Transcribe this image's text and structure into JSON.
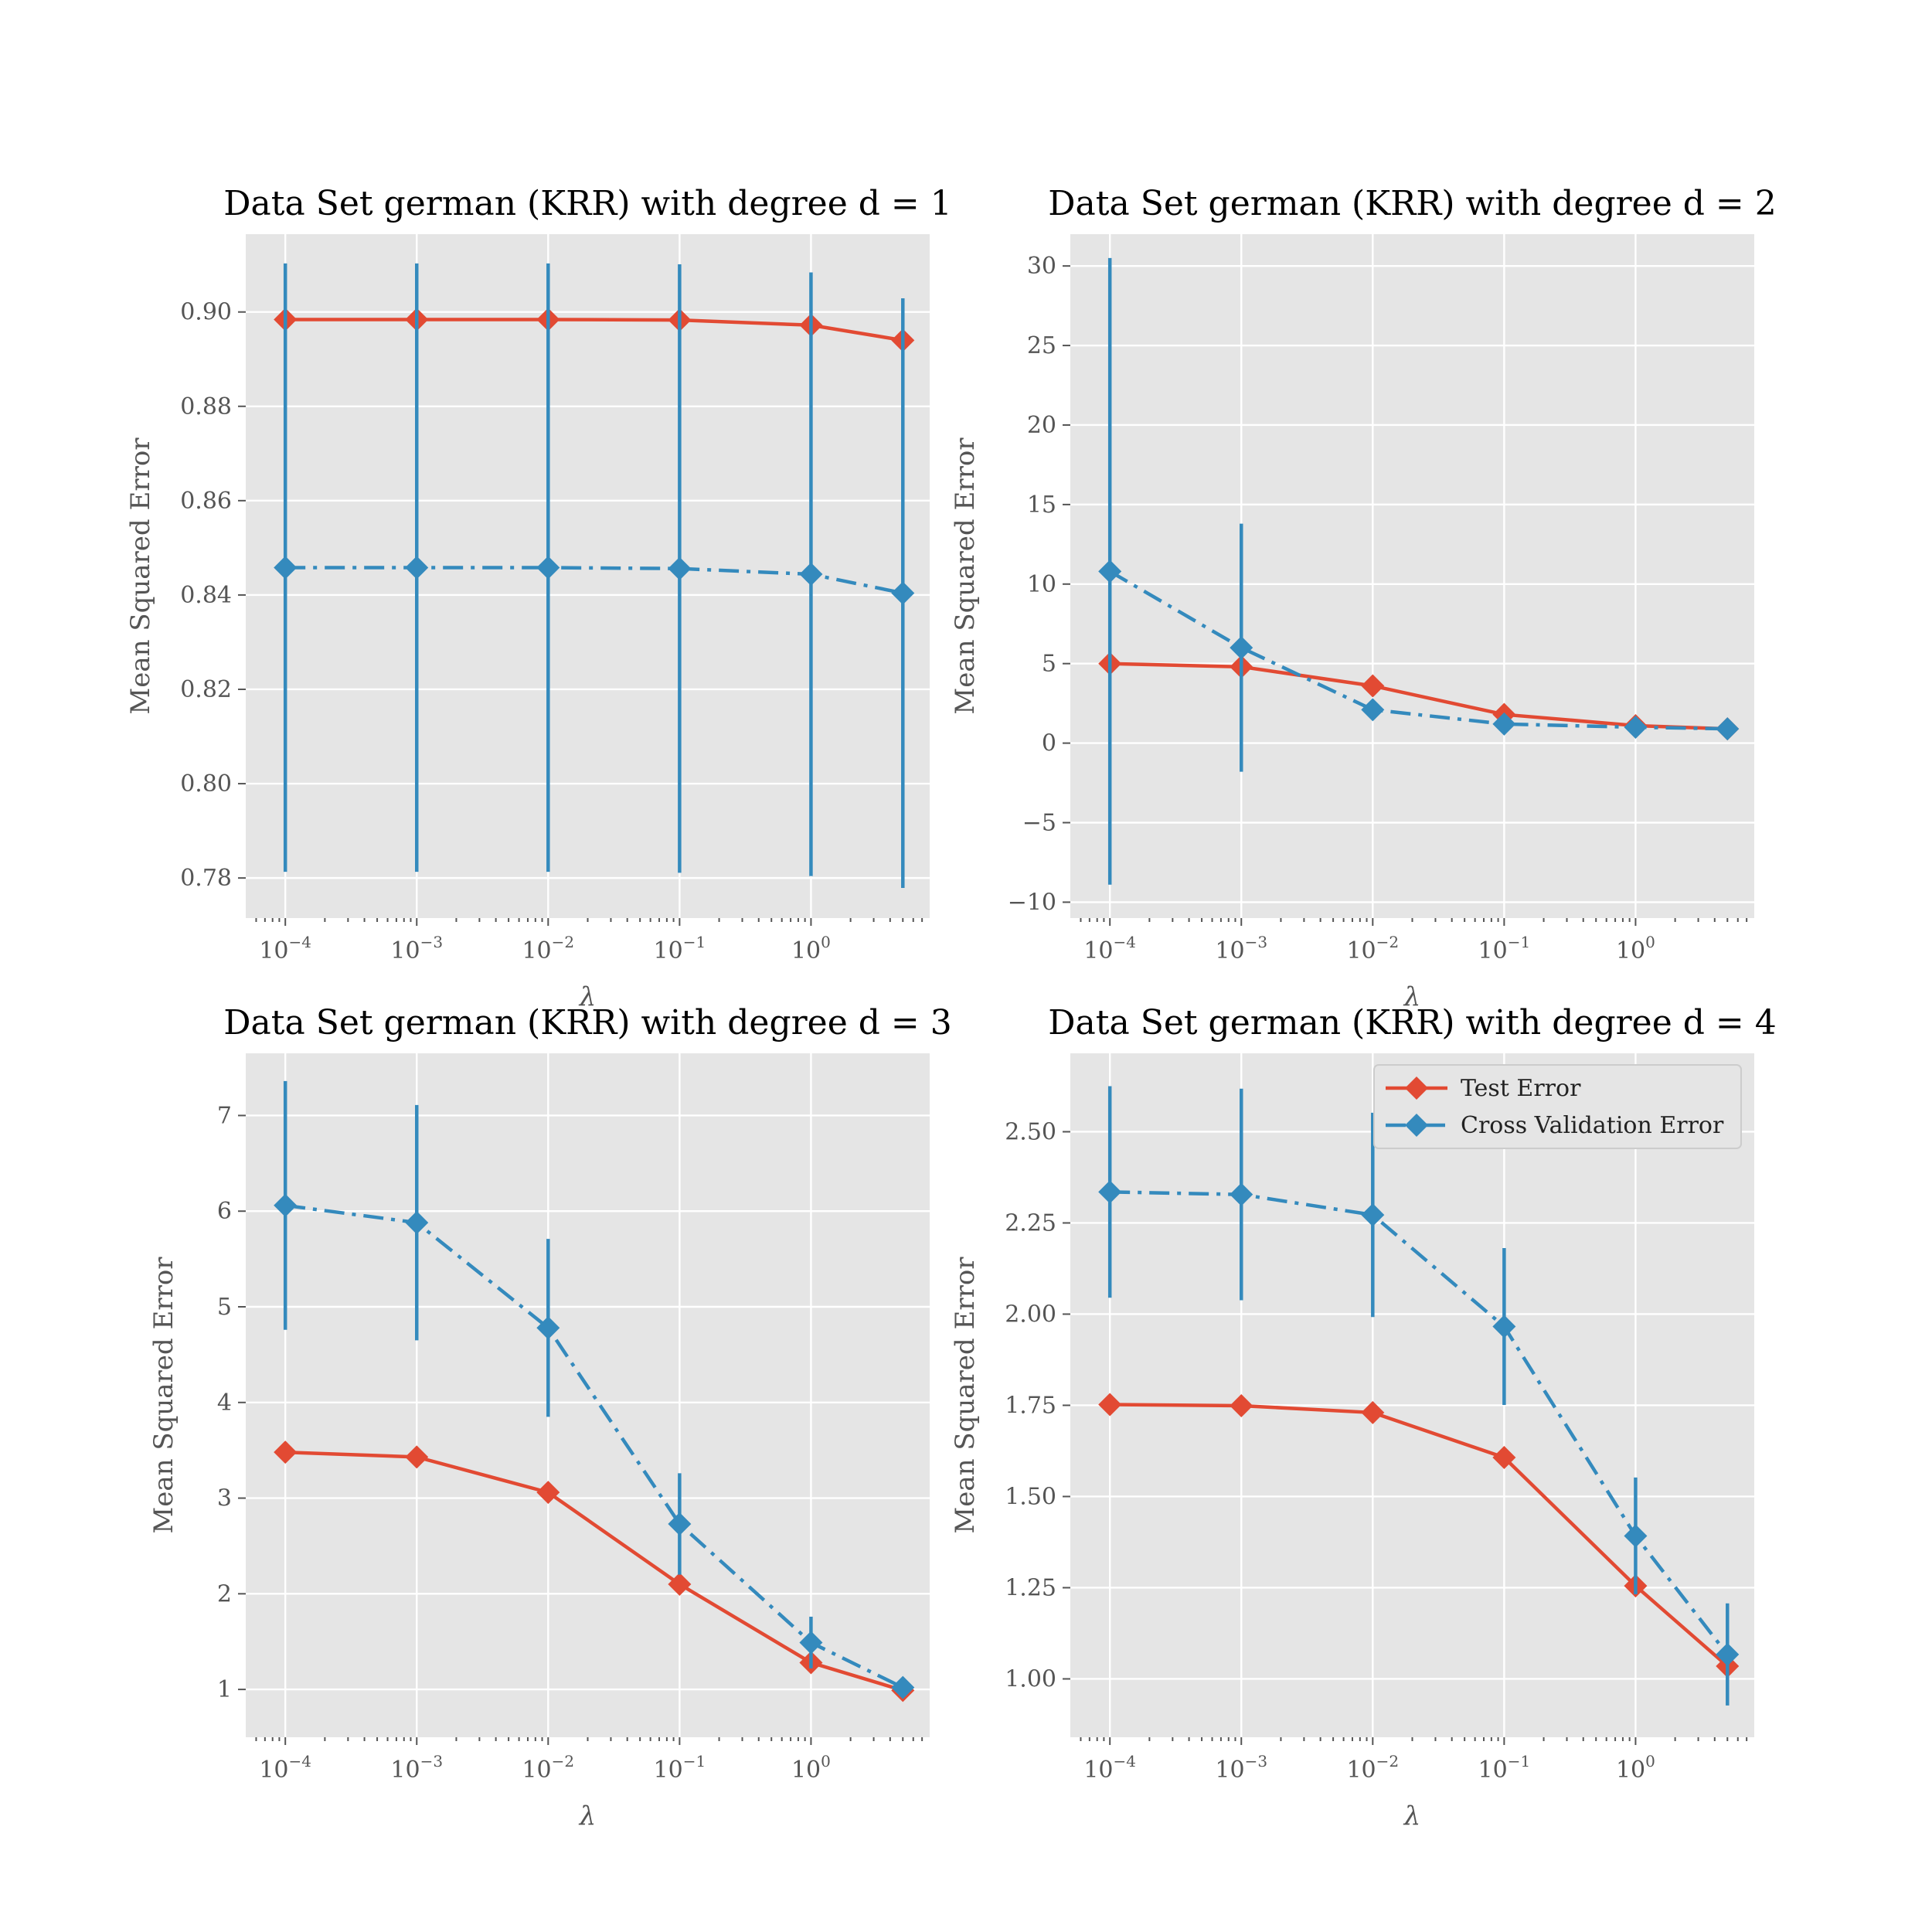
{
  "figure": {
    "xlabel": "λ",
    "ylabel": "Mean Squared Error"
  },
  "legend": {
    "test_label": "Test Error",
    "cv_label": "Cross Validation Error"
  },
  "colors": {
    "test": "#e24a33",
    "cv": "#348abd",
    "panel_bg": "#e5e5e5"
  },
  "chart_data": [
    {
      "type": "line",
      "title": "Data Set german (KRR) with degree d = 1",
      "xscale": "log",
      "xlim": [
        5e-05,
        8
      ],
      "ylim": [
        0.7715,
        0.9165
      ],
      "x": [
        0.0001,
        0.001,
        0.01,
        0.1,
        1,
        5
      ],
      "xticks": [
        0.0001,
        0.001,
        0.01,
        0.1,
        1
      ],
      "xtick_labels": [
        "10−4",
        "10−3",
        "10−2",
        "10−1",
        "100"
      ],
      "yticks": [
        0.78,
        0.8,
        0.82,
        0.84,
        0.86,
        0.88,
        0.9
      ],
      "ytick_labels": [
        "0.78",
        "0.80",
        "0.82",
        "0.84",
        "0.86",
        "0.88",
        "0.90"
      ],
      "series": [
        {
          "name": "Test Error",
          "style": "solid",
          "values": [
            0.8984,
            0.8984,
            0.8984,
            0.8983,
            0.8972,
            0.894
          ]
        },
        {
          "name": "Cross Validation Error",
          "style": "dashdot",
          "values": [
            0.8458,
            0.8458,
            0.8458,
            0.8456,
            0.8444,
            0.8404
          ],
          "err": [
            0.0645,
            0.0645,
            0.0645,
            0.0645,
            0.064,
            0.0625
          ]
        }
      ],
      "legend": false
    },
    {
      "type": "line",
      "title": "Data Set german (KRR) with degree d = 2",
      "xscale": "log",
      "xlim": [
        5e-05,
        8
      ],
      "ylim": [
        -11,
        32
      ],
      "x": [
        0.0001,
        0.001,
        0.01,
        0.1,
        1,
        5
      ],
      "xticks": [
        0.0001,
        0.001,
        0.01,
        0.1,
        1
      ],
      "xtick_labels": [
        "10−4",
        "10−3",
        "10−2",
        "10−1",
        "100"
      ],
      "yticks": [
        -10,
        -5,
        0,
        5,
        10,
        15,
        20,
        25,
        30
      ],
      "ytick_labels": [
        "−10",
        "−5",
        "0",
        "5",
        "10",
        "15",
        "20",
        "25",
        "30"
      ],
      "series": [
        {
          "name": "Test Error",
          "style": "solid",
          "values": [
            5.0,
            4.8,
            3.6,
            1.8,
            1.1,
            0.9
          ]
        },
        {
          "name": "Cross Validation Error",
          "style": "dashdot",
          "values": [
            10.8,
            6.0,
            2.1,
            1.2,
            1.0,
            0.9
          ],
          "err": [
            19.7,
            7.8,
            0.2,
            0.15,
            0.1,
            0.05
          ]
        }
      ],
      "legend": false
    },
    {
      "type": "line",
      "title": "Data Set german (KRR) with degree d = 3",
      "xscale": "log",
      "xlim": [
        5e-05,
        8
      ],
      "ylim": [
        0.5,
        7.65
      ],
      "x": [
        0.0001,
        0.001,
        0.01,
        0.1,
        1,
        5
      ],
      "xticks": [
        0.0001,
        0.001,
        0.01,
        0.1,
        1
      ],
      "xtick_labels": [
        "10−4",
        "10−3",
        "10−2",
        "10−1",
        "100"
      ],
      "yticks": [
        1,
        2,
        3,
        4,
        5,
        6,
        7
      ],
      "ytick_labels": [
        "1",
        "2",
        "3",
        "4",
        "5",
        "6",
        "7"
      ],
      "series": [
        {
          "name": "Test Error",
          "style": "solid",
          "values": [
            3.48,
            3.43,
            3.06,
            2.1,
            1.28,
            0.99
          ]
        },
        {
          "name": "Cross Validation Error",
          "style": "dashdot",
          "values": [
            6.06,
            5.88,
            4.78,
            2.73,
            1.49,
            1.02
          ],
          "err": [
            1.3,
            1.23,
            0.93,
            0.53,
            0.27,
            0.1
          ]
        }
      ],
      "legend": false
    },
    {
      "type": "line",
      "title": "Data Set german (KRR) with degree d = 4",
      "xscale": "log",
      "xlim": [
        5e-05,
        8
      ],
      "ylim": [
        0.84,
        2.715
      ],
      "x": [
        0.0001,
        0.001,
        0.01,
        0.1,
        1,
        5
      ],
      "xticks": [
        0.0001,
        0.001,
        0.01,
        0.1,
        1
      ],
      "xtick_labels": [
        "10−4",
        "10−3",
        "10−2",
        "10−1",
        "100"
      ],
      "yticks": [
        1.0,
        1.25,
        1.5,
        1.75,
        2.0,
        2.25,
        2.5
      ],
      "ytick_labels": [
        "1.00",
        "1.25",
        "1.50",
        "1.75",
        "2.00",
        "2.25",
        "2.50"
      ],
      "series": [
        {
          "name": "Test Error",
          "style": "solid",
          "values": [
            1.752,
            1.749,
            1.73,
            1.607,
            1.255,
            1.035
          ]
        },
        {
          "name": "Cross Validation Error",
          "style": "dashdot",
          "values": [
            2.335,
            2.328,
            2.272,
            1.966,
            1.392,
            1.067
          ],
          "err": [
            0.29,
            0.29,
            0.28,
            0.215,
            0.16,
            0.14
          ]
        }
      ],
      "legend": true,
      "legend_position": "top-right"
    }
  ]
}
